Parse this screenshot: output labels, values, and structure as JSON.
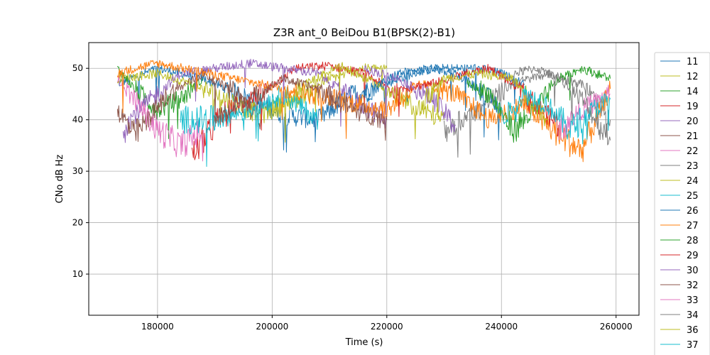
{
  "chart_data": {
    "type": "line",
    "title": "Z3R ant_0 BeiDou B1(BPSK(2)-B1)",
    "xlabel": "Time (s)",
    "ylabel": "CNo dB Hz",
    "xlim": [
      168000,
      264000
    ],
    "ylim": [
      2,
      55
    ],
    "xticks": [
      180000,
      200000,
      220000,
      240000,
      260000
    ],
    "xtick_labels": [
      "180000",
      "200000",
      "220000",
      "240000",
      "260000"
    ],
    "yticks": [
      10,
      20,
      30,
      40,
      50
    ],
    "ytick_labels": [
      "10",
      "20",
      "30",
      "40",
      "50"
    ],
    "grid": true,
    "legend_position": "right, outside plot (clipped at bottom)",
    "series": [
      {
        "name": "11",
        "color": "#1f77b4",
        "x": [
          173000,
          180000,
          188000,
          196000,
          202000,
          208000,
          214000,
          218000,
          222000,
          226000,
          230000,
          236000,
          240000,
          244000
        ],
        "y": [
          47,
          50,
          48,
          44,
          41,
          40,
          45,
          46,
          48,
          49.5,
          50,
          50,
          49,
          47
        ]
      },
      {
        "name": "12",
        "color": "#bcbd22",
        "x": [
          173000,
          180000,
          186000,
          192000,
          198000,
          204000,
          210000,
          216000,
          220000
        ],
        "y": [
          48,
          49,
          47,
          44,
          41,
          44,
          48,
          50,
          50
        ]
      },
      {
        "name": "14",
        "color": "#2ca02c",
        "x": [
          173000,
          176000,
          180000,
          184000,
          188000
        ],
        "y": [
          50,
          46,
          42,
          44,
          48
        ]
      },
      {
        "name": "19",
        "color": "#d62728",
        "x": [
          186000,
          192000,
          198000,
          204000,
          210000,
          216000,
          222000
        ],
        "y": [
          33,
          42,
          45,
          50,
          50.5,
          49,
          45
        ]
      },
      {
        "name": "20",
        "color": "#9467bd",
        "x": [
          174000,
          178000,
          184000,
          190000,
          196000,
          202000,
          208000,
          214000,
          220000
        ],
        "y": [
          39,
          43,
          49,
          50,
          51,
          50,
          49,
          44,
          40
        ]
      },
      {
        "name": "21",
        "color": "#8c564b",
        "x": [
          173000,
          176000,
          182000,
          188000,
          194000,
          198000
        ],
        "y": [
          42,
          37,
          45,
          49,
          45,
          40
        ]
      },
      {
        "name": "22",
        "color": "#e377c2",
        "x": [
          173000,
          176000,
          180000,
          184000,
          188000
        ],
        "y": [
          48,
          44,
          38,
          35,
          38
        ]
      },
      {
        "name": "23",
        "color": "#7f7f7f",
        "x": [
          230000,
          236000,
          242000,
          248000,
          254000,
          259000
        ],
        "y": [
          38,
          42,
          47,
          49,
          47,
          40
        ]
      },
      {
        "name": "24",
        "color": "#bcbd22",
        "x": [
          200000,
          206000,
          212000,
          218000,
          224000,
          230000
        ],
        "y": [
          42,
          47,
          50.5,
          47,
          43,
          40
        ]
      },
      {
        "name": "25",
        "color": "#17becf",
        "x": [
          184000,
          190000,
          196000,
          202000,
          208000
        ],
        "y": [
          40,
          40,
          42,
          45,
          40
        ]
      },
      {
        "name": "26",
        "color": "#1f77b4",
        "x": [
          216000,
          222000,
          228000,
          232000,
          236000,
          240000
        ],
        "y": [
          45,
          49,
          50,
          49,
          46,
          42
        ]
      },
      {
        "name": "27",
        "color": "#ff7f0e",
        "x": [
          173000,
          176000,
          180000,
          220000,
          226000,
          232000,
          238000,
          244000,
          250000,
          254000,
          259000
        ],
        "y": [
          49,
          50,
          51,
          42,
          47,
          45,
          40,
          43,
          37,
          34,
          46
        ]
      },
      {
        "name": "28",
        "color": "#2ca02c",
        "x": [
          234000,
          238000,
          242000,
          246000,
          250000,
          254000,
          259000
        ],
        "y": [
          47,
          45,
          38,
          42,
          48,
          50,
          48
        ]
      },
      {
        "name": "29",
        "color": "#d62728",
        "x": [
          222000,
          228000,
          234000,
          238000,
          242000,
          246000,
          250000
        ],
        "y": [
          46,
          47,
          49,
          50,
          47,
          43,
          39
        ]
      },
      {
        "name": "30",
        "color": "#9467bd",
        "x": [
          216000,
          222000,
          228000,
          232000
        ],
        "y": [
          50,
          48,
          44,
          39
        ]
      },
      {
        "name": "32",
        "color": "#8c564b",
        "x": [
          190000,
          196000,
          202000,
          208000,
          214000,
          220000
        ],
        "y": [
          40,
          44,
          48,
          46,
          42,
          40
        ]
      },
      {
        "name": "33",
        "color": "#e377c2",
        "x": [
          250000,
          254000,
          259000
        ],
        "y": [
          38,
          42,
          45
        ]
      },
      {
        "name": "34",
        "color": "#7f7f7f",
        "x": [
          242000,
          246000,
          250000,
          254000,
          259000
        ],
        "y": [
          49,
          50,
          48,
          44,
          36
        ]
      },
      {
        "name": "36",
        "color": "#bcbd22",
        "x": [
          226000,
          230000,
          236000,
          242000,
          248000
        ],
        "y": [
          43,
          48,
          49,
          48,
          40
        ]
      },
      {
        "name": "37",
        "color": "#17becf",
        "x": [
          240000,
          244000,
          248000,
          252000,
          256000,
          259000
        ],
        "y": [
          40,
          45,
          43,
          38,
          42,
          44
        ]
      }
    ]
  }
}
